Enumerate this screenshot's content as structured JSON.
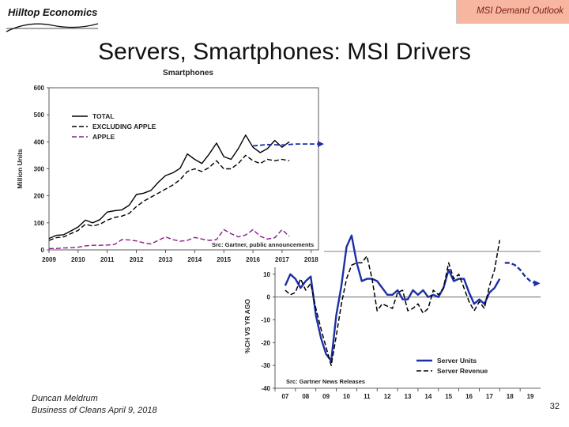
{
  "header": {
    "logo_text": "Hilltop Economics",
    "tag": "MSI Demand Outlook",
    "title": "Servers, Smartphones: MSI Drivers"
  },
  "footer": {
    "author": "Duncan Meldrum",
    "event": "Business of Cleans April 9, 2018",
    "page": "32"
  },
  "chart_data": [
    {
      "type": "line",
      "title": "Smartphones",
      "ylabel": "Million Units",
      "xlabel": "",
      "ylim": [
        0,
        600
      ],
      "yticks": [
        0,
        100,
        200,
        300,
        400,
        500
      ],
      "xlim": [
        2009,
        2018.25
      ],
      "xticks": [
        "2009",
        "2010",
        "2011",
        "2012",
        "2013",
        "2014",
        "2015",
        "2016",
        "2017",
        "2018"
      ],
      "legend_position": "top-left",
      "source": "Src: Gartner, public announcements",
      "series": [
        {
          "name": "TOTAL",
          "color": "#000000",
          "style": "solid",
          "x": [
            2009.0,
            2009.25,
            2009.5,
            2009.75,
            2010.0,
            2010.25,
            2010.5,
            2010.75,
            2011.0,
            2011.25,
            2011.5,
            2011.75,
            2012.0,
            2012.25,
            2012.5,
            2012.75,
            2013.0,
            2013.25,
            2013.5,
            2013.75,
            2014.0,
            2014.25,
            2014.5,
            2014.75,
            2015.0,
            2015.25,
            2015.5,
            2015.75,
            2016.0,
            2016.25,
            2016.5,
            2016.75,
            2017.0,
            2017.25
          ],
          "values": [
            42,
            54,
            56,
            70,
            85,
            110,
            100,
            112,
            140,
            145,
            148,
            165,
            205,
            210,
            220,
            250,
            275,
            285,
            302,
            355,
            335,
            320,
            355,
            395,
            345,
            335,
            375,
            425,
            380,
            360,
            375,
            405,
            380,
            400
          ]
        },
        {
          "name": "EXCLUDING APPLE",
          "color": "#000000",
          "style": "dashed",
          "x": [
            2009.0,
            2009.25,
            2009.5,
            2009.75,
            2010.0,
            2010.25,
            2010.5,
            2010.75,
            2011.0,
            2011.25,
            2011.5,
            2011.75,
            2012.0,
            2012.25,
            2012.5,
            2012.75,
            2013.0,
            2013.25,
            2013.5,
            2013.75,
            2014.0,
            2014.25,
            2014.5,
            2014.75,
            2015.0,
            2015.25,
            2015.5,
            2015.75,
            2016.0,
            2016.25,
            2016.5,
            2016.75,
            2017.0,
            2017.25
          ],
          "values": [
            35,
            45,
            48,
            60,
            72,
            95,
            88,
            95,
            110,
            120,
            125,
            135,
            160,
            180,
            195,
            210,
            225,
            240,
            260,
            290,
            300,
            290,
            305,
            330,
            300,
            300,
            320,
            350,
            330,
            320,
            335,
            330,
            335,
            330
          ]
        },
        {
          "name": "APPLE",
          "color": "#8b1a8b",
          "style": "dashed",
          "x": [
            2009.0,
            2009.25,
            2009.5,
            2009.75,
            2010.0,
            2010.25,
            2010.5,
            2010.75,
            2011.0,
            2011.25,
            2011.5,
            2011.75,
            2012.0,
            2012.25,
            2012.5,
            2012.75,
            2013.0,
            2013.25,
            2013.5,
            2013.75,
            2014.0,
            2014.25,
            2014.5,
            2014.75,
            2015.0,
            2015.25,
            2015.5,
            2015.75,
            2016.0,
            2016.25,
            2016.5,
            2016.75,
            2017.0,
            2017.25
          ],
          "values": [
            5,
            5,
            7,
            8,
            10,
            15,
            17,
            17,
            18,
            20,
            38,
            37,
            33,
            26,
            22,
            35,
            48,
            38,
            32,
            35,
            46,
            40,
            35,
            38,
            75,
            60,
            48,
            55,
            75,
            50,
            40,
            45,
            75,
            50
          ]
        },
        {
          "name": "",
          "color": "#1c2fa6",
          "style": "dashed",
          "x": [
            2016.0,
            2016.5,
            2017.0,
            2017.5,
            2018.25
          ],
          "values": [
            385,
            390,
            388,
            392,
            392
          ]
        }
      ]
    },
    {
      "type": "line",
      "title": "",
      "ylabel": "%CH VS YR AGO",
      "xlabel": "",
      "ylim": [
        -40,
        20
      ],
      "yticks": [
        -40,
        -30,
        -20,
        -10,
        0,
        10
      ],
      "xlim": [
        2006.5,
        2019.5
      ],
      "xticks": [
        "07",
        "08",
        "09",
        "10",
        "11",
        "12",
        "13",
        "14",
        "15",
        "16",
        "17",
        "18",
        "19"
      ],
      "legend_position": "bottom-right",
      "source": "Src: Gartner News Releases",
      "series": [
        {
          "name": "Server Units",
          "color": "#1c2fa6",
          "style": "solid",
          "x": [
            2007.0,
            2007.25,
            2007.5,
            2007.75,
            2008.0,
            2008.25,
            2008.5,
            2008.75,
            2009.0,
            2009.25,
            2009.5,
            2009.75,
            2010.0,
            2010.25,
            2010.5,
            2010.75,
            2011.0,
            2011.25,
            2011.5,
            2011.75,
            2012.0,
            2012.25,
            2012.5,
            2012.75,
            2013.0,
            2013.25,
            2013.5,
            2013.75,
            2014.0,
            2014.25,
            2014.5,
            2014.75,
            2015.0,
            2015.25,
            2015.5,
            2015.75,
            2016.0,
            2016.25,
            2016.5,
            2016.75,
            2017.0,
            2017.25,
            2017.5
          ],
          "values": [
            5,
            10,
            8,
            4,
            7,
            9,
            -8,
            -18,
            -25,
            -28,
            -8,
            5,
            22,
            27,
            15,
            7,
            8,
            8,
            7,
            4,
            1,
            1,
            3,
            -1,
            -1,
            3,
            1,
            3,
            0,
            1,
            0,
            4,
            12,
            7,
            8,
            8,
            2,
            -3,
            -1,
            -3,
            2,
            4,
            8
          ]
        },
        {
          "name": "Server Revenue",
          "color": "#000000",
          "style": "dashed",
          "x": [
            2007.0,
            2007.25,
            2007.5,
            2007.75,
            2008.0,
            2008.25,
            2008.5,
            2008.75,
            2009.0,
            2009.25,
            2009.5,
            2009.75,
            2010.0,
            2010.25,
            2010.5,
            2010.75,
            2011.0,
            2011.25,
            2011.5,
            2011.75,
            2012.0,
            2012.25,
            2012.5,
            2012.75,
            2013.0,
            2013.25,
            2013.5,
            2013.75,
            2014.0,
            2014.25,
            2014.5,
            2014.75,
            2015.0,
            2015.25,
            2015.5,
            2015.75,
            2016.0,
            2016.25,
            2016.5,
            2016.75,
            2017.0,
            2017.25,
            2017.5
          ],
          "values": [
            3,
            1,
            2,
            8,
            3,
            6,
            -5,
            -14,
            -22,
            -30,
            -17,
            -3,
            8,
            14,
            15,
            15,
            18,
            8,
            -6,
            -3,
            -4,
            -5,
            2,
            3,
            -6,
            -5,
            -3,
            -7,
            -5,
            3,
            1,
            4,
            15,
            8,
            10,
            4,
            -2,
            -6,
            -2,
            -5,
            5,
            12,
            25
          ]
        },
        {
          "name": "",
          "color": "#1c2fa6",
          "style": "dashed",
          "x": [
            2017.75,
            2018.0,
            2018.25,
            2018.5,
            2018.75,
            2019.0,
            2019.25
          ],
          "values": [
            15,
            15,
            14,
            12,
            9,
            7,
            6
          ]
        }
      ]
    }
  ]
}
